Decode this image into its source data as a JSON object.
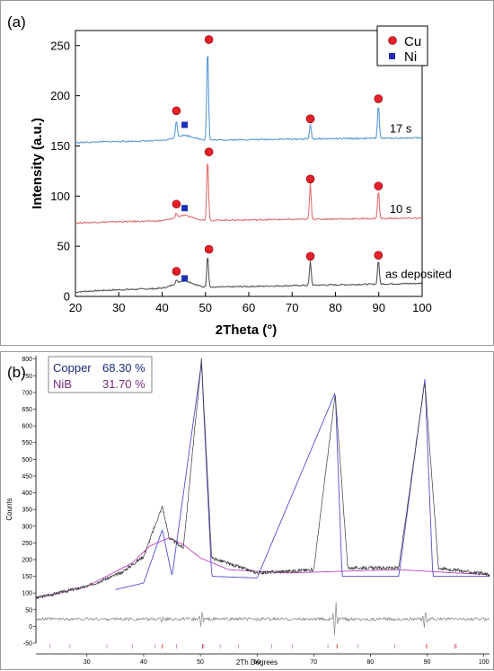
{
  "chart_data": [
    {
      "panel_label": "(a)",
      "type": "line",
      "xlabel": "2Theta (°)",
      "ylabel": "Intensity (a.u.)",
      "xlim": [
        20,
        100
      ],
      "ylim": [
        0,
        265
      ],
      "x_ticks": [
        20,
        30,
        40,
        50,
        60,
        70,
        80,
        90,
        100
      ],
      "y_ticks": [
        0,
        50,
        100,
        150,
        200,
        250
      ],
      "grid": false,
      "legend": {
        "placement": "top-right",
        "entries": [
          {
            "label": "Cu",
            "marker": "circle",
            "color": "#e8202a"
          },
          {
            "label": "Ni",
            "marker": "square",
            "color": "#1a2fb8"
          }
        ]
      },
      "series": [
        {
          "name": "as deposited",
          "color": "#555555",
          "baseline": 4,
          "end_level": 13,
          "broad_hump": {
            "center": 45,
            "height": 7,
            "width": 3
          },
          "peaks": [
            {
              "x": 43.3,
              "y": 16
            },
            {
              "x": 50.5,
              "y": 42
            },
            {
              "x": 74.2,
              "y": 35
            },
            {
              "x": 89.9,
              "y": 37
            }
          ],
          "cu_markers": [
            [
              43.3,
              25
            ],
            [
              50.8,
              47
            ],
            [
              74.2,
              40
            ],
            [
              89.9,
              41
            ]
          ],
          "ni_markers": [
            [
              45.2,
              18
            ]
          ]
        },
        {
          "name": "10 s",
          "color": "#e07070",
          "baseline": 73,
          "end_level": 78,
          "broad_hump": {
            "center": 45,
            "height": 5,
            "width": 3
          },
          "peaks": [
            {
              "x": 43.3,
              "y": 83
            },
            {
              "x": 50.5,
              "y": 139
            },
            {
              "x": 74.2,
              "y": 113
            },
            {
              "x": 89.9,
              "y": 106
            }
          ],
          "cu_markers": [
            [
              43.3,
              92
            ],
            [
              50.8,
              144
            ],
            [
              74.2,
              117
            ],
            [
              89.9,
              110
            ]
          ],
          "ni_markers": [
            [
              45.2,
              88
            ]
          ]
        },
        {
          "name": "17 s",
          "color": "#5b9bd5",
          "baseline": 153,
          "end_level": 158,
          "broad_hump": {
            "center": 45,
            "height": 5,
            "width": 3
          },
          "peaks": [
            {
              "x": 43.3,
              "y": 176
            },
            {
              "x": 50.5,
              "y": 250
            },
            {
              "x": 74.2,
              "y": 172
            },
            {
              "x": 89.9,
              "y": 192
            }
          ],
          "cu_markers": [
            [
              43.3,
              185
            ],
            [
              50.8,
              256
            ],
            [
              74.2,
              177
            ],
            [
              89.9,
              197
            ]
          ],
          "ni_markers": [
            [
              45.2,
              171
            ]
          ]
        }
      ]
    },
    {
      "panel_label": "(b)",
      "type": "line",
      "xlabel": "2Th Degrees",
      "ylabel": "Counts",
      "xlim": [
        21,
        101
      ],
      "ylim": [
        -50,
        810
      ],
      "x_ticks": [
        30,
        40,
        50,
        60,
        70,
        80,
        90,
        100
      ],
      "y_ticks": [
        -50,
        0,
        50,
        100,
        150,
        200,
        250,
        300,
        350,
        400,
        450,
        500,
        550,
        600,
        650,
        700,
        750,
        800
      ],
      "legend": {
        "placement": "top-left",
        "entries": [
          {
            "label": "Copper",
            "value": "68.30 %",
            "color": "#1a2a7a"
          },
          {
            "label": "NiB",
            "value": "31.70 %",
            "color": "#7a2a7a"
          }
        ]
      },
      "series": [
        {
          "name": "observed",
          "color": "#3a3a3a",
          "points": [
            [
              21,
              85
            ],
            [
              30,
              120
            ],
            [
              36,
              160
            ],
            [
              40,
              210
            ],
            [
              43.3,
              360
            ],
            [
              44.5,
              265
            ],
            [
              47,
              235
            ],
            [
              50.2,
              800
            ],
            [
              52,
              205
            ],
            [
              60,
              160
            ],
            [
              70,
              170
            ],
            [
              73.8,
              695
            ],
            [
              76,
              175
            ],
            [
              85,
              175
            ],
            [
              89.6,
              735
            ],
            [
              92,
              175
            ],
            [
              101,
              155
            ]
          ]
        },
        {
          "name": "NiB fit",
          "color": "#c040c0",
          "points": [
            [
              21,
              85
            ],
            [
              30,
              120
            ],
            [
              38,
              190
            ],
            [
              41,
              240
            ],
            [
              44.5,
              265
            ],
            [
              47,
              245
            ],
            [
              50,
              205
            ],
            [
              55,
              170
            ],
            [
              65,
              160
            ],
            [
              75,
              165
            ],
            [
              85,
              170
            ],
            [
              95,
              160
            ],
            [
              101,
              155
            ]
          ]
        },
        {
          "name": "Copper fit",
          "color": "#5050d0",
          "points": [
            [
              35,
              110
            ],
            [
              40,
              130
            ],
            [
              43.3,
              290
            ],
            [
              45,
              150
            ],
            [
              50.2,
              790
            ],
            [
              52,
              150
            ],
            [
              60,
              145
            ],
            [
              73.8,
              700
            ],
            [
              75,
              150
            ],
            [
              85,
              150
            ],
            [
              89.6,
              740
            ],
            [
              91,
              150
            ],
            [
              101,
              150
            ]
          ]
        },
        {
          "name": "difference",
          "color": "#888888",
          "baseline": 22,
          "spikes": [
            [
              43.3,
              10
            ],
            [
              50.2,
              25
            ],
            [
              73.8,
              55
            ],
            [
              89.6,
              30
            ]
          ]
        }
      ],
      "tick_marks": {
        "copper": [
          43.3,
          50.4,
          74.1,
          89.9,
          95.1
        ],
        "nib": [
          23.5,
          27,
          33.5,
          38,
          42,
          45.8,
          50.6,
          53.5,
          56.7,
          62.6,
          66.2,
          72.5,
          77.8,
          84.3,
          94.8
        ]
      }
    }
  ]
}
